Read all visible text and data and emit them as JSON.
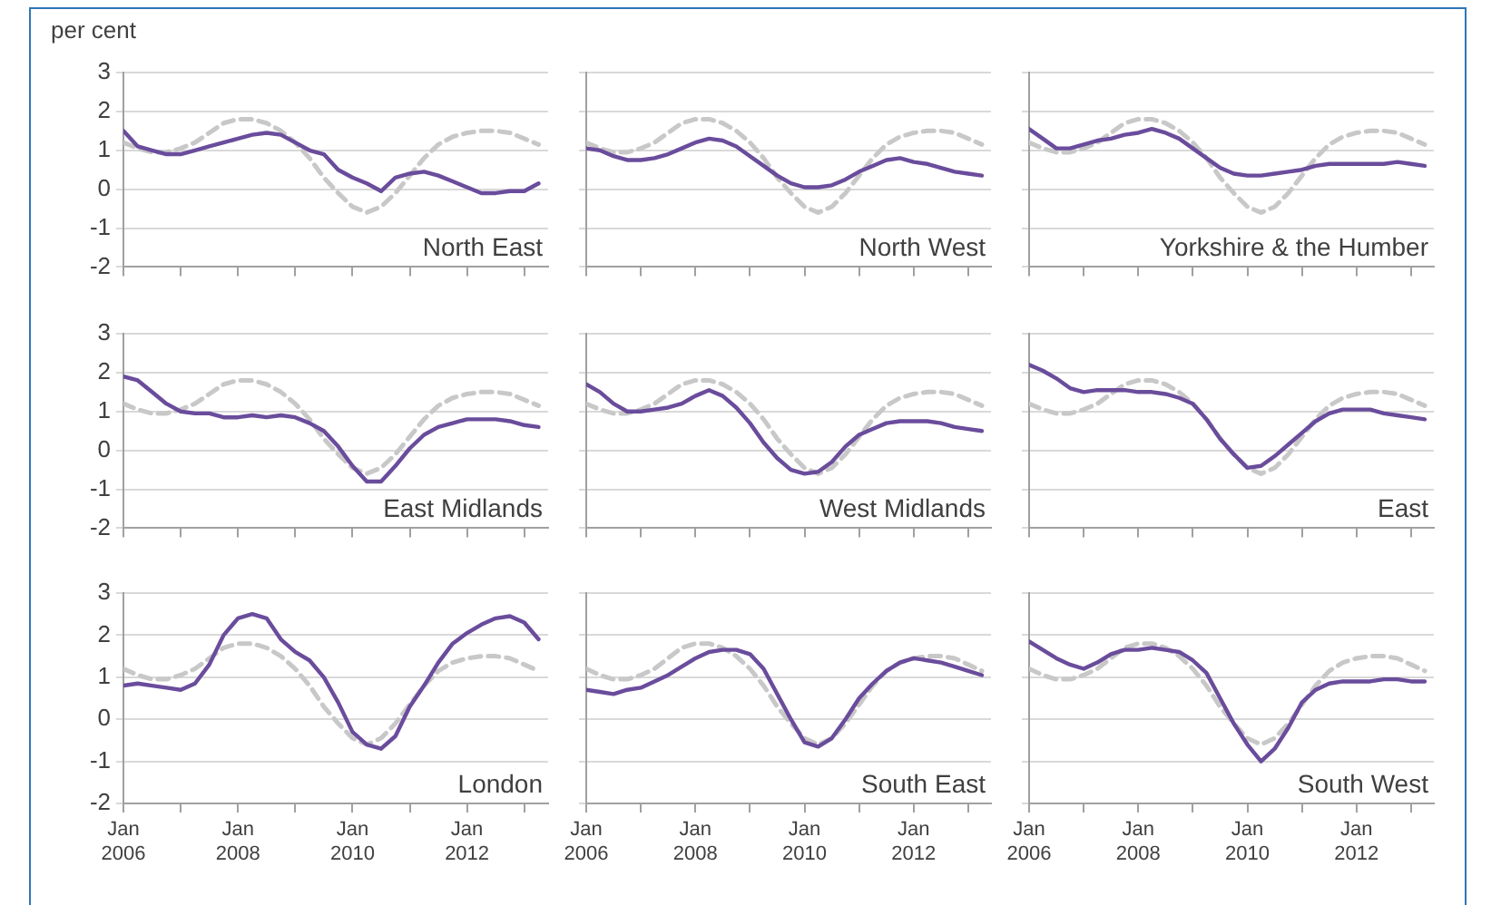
{
  "chart_data": [
    {
      "type": "line",
      "title": "North East",
      "ylabel": "per cent",
      "x": [
        "2006-01",
        "2006-04",
        "2006-07",
        "2006-10",
        "2007-01",
        "2007-04",
        "2007-07",
        "2007-10",
        "2008-01",
        "2008-04",
        "2008-07",
        "2008-10",
        "2009-01",
        "2009-04",
        "2009-07",
        "2009-10",
        "2010-01",
        "2010-04",
        "2010-07",
        "2010-10",
        "2011-01",
        "2011-04",
        "2011-07",
        "2011-10",
        "2012-01",
        "2012-04",
        "2012-07",
        "2012-10",
        "2013-01",
        "2013-04"
      ],
      "marker": "none",
      "grid": "y",
      "tick_labels": "y",
      "xlim": [
        "2006-01",
        "2013-06"
      ],
      "ylim": [
        -2,
        3
      ],
      "yticks": [
        -2,
        -1,
        0,
        1,
        2,
        3
      ],
      "xticks": [
        {
          "value": "2006-01",
          "label": null
        },
        {
          "value": "2007-01",
          "label": null
        },
        {
          "value": "2008-01",
          "label": null
        },
        {
          "value": "2009-01",
          "label": null
        },
        {
          "value": "2010-01",
          "label": null
        },
        {
          "value": "2011-01",
          "label": null
        },
        {
          "value": "2012-01",
          "label": null
        },
        {
          "value": "2013-01",
          "label": null
        }
      ],
      "series": [
        {
          "color": "#6a4c9c",
          "line_style": "solid",
          "values": [
            1.5,
            1.1,
            1.0,
            0.9,
            0.9,
            1.0,
            1.1,
            1.2,
            1.3,
            1.4,
            1.45,
            1.4,
            1.2,
            1.0,
            0.9,
            0.5,
            0.3,
            0.15,
            -0.05,
            0.3,
            0.4,
            0.45,
            0.35,
            0.2,
            0.05,
            -0.1,
            -0.1,
            -0.05,
            -0.05,
            0.15
          ]
        },
        {
          "color": "#c8c8c8",
          "line_style": "dashed",
          "values": [
            1.2,
            1.05,
            0.95,
            0.95,
            1.05,
            1.2,
            1.45,
            1.7,
            1.8,
            1.8,
            1.7,
            1.5,
            1.2,
            0.8,
            0.3,
            -0.1,
            -0.45,
            -0.6,
            -0.45,
            -0.1,
            0.35,
            0.8,
            1.15,
            1.35,
            1.45,
            1.5,
            1.5,
            1.45,
            1.3,
            1.15
          ]
        }
      ]
    },
    {
      "type": "line",
      "title": "North West",
      "x": [
        "2006-01",
        "2006-04",
        "2006-07",
        "2006-10",
        "2007-01",
        "2007-04",
        "2007-07",
        "2007-10",
        "2008-01",
        "2008-04",
        "2008-07",
        "2008-10",
        "2009-01",
        "2009-04",
        "2009-07",
        "2009-10",
        "2010-01",
        "2010-04",
        "2010-07",
        "2010-10",
        "2011-01",
        "2011-04",
        "2011-07",
        "2011-10",
        "2012-01",
        "2012-04",
        "2012-07",
        "2012-10",
        "2013-01",
        "2013-04"
      ],
      "marker": "none",
      "grid": "y",
      "tick_labels": false,
      "xlim": [
        "2006-01",
        "2013-06"
      ],
      "ylim": [
        -2,
        3
      ],
      "yticks": [
        -2,
        -1,
        0,
        1,
        2,
        3
      ],
      "xticks": [
        {
          "value": "2006-01",
          "label": null
        },
        {
          "value": "2007-01",
          "label": null
        },
        {
          "value": "2008-01",
          "label": null
        },
        {
          "value": "2009-01",
          "label": null
        },
        {
          "value": "2010-01",
          "label": null
        },
        {
          "value": "2011-01",
          "label": null
        },
        {
          "value": "2012-01",
          "label": null
        },
        {
          "value": "2013-01",
          "label": null
        }
      ],
      "series": [
        {
          "color": "#6a4c9c",
          "line_style": "solid",
          "values": [
            1.05,
            1.0,
            0.85,
            0.75,
            0.75,
            0.8,
            0.9,
            1.05,
            1.2,
            1.3,
            1.25,
            1.1,
            0.85,
            0.6,
            0.35,
            0.15,
            0.05,
            0.05,
            0.1,
            0.25,
            0.45,
            0.6,
            0.75,
            0.8,
            0.7,
            0.65,
            0.55,
            0.45,
            0.4,
            0.35
          ]
        },
        {
          "color": "#c8c8c8",
          "line_style": "dashed",
          "values": [
            1.2,
            1.05,
            0.95,
            0.95,
            1.05,
            1.2,
            1.45,
            1.7,
            1.8,
            1.8,
            1.7,
            1.5,
            1.2,
            0.8,
            0.3,
            -0.1,
            -0.45,
            -0.6,
            -0.45,
            -0.1,
            0.35,
            0.8,
            1.15,
            1.35,
            1.45,
            1.5,
            1.5,
            1.45,
            1.3,
            1.15
          ]
        }
      ]
    },
    {
      "type": "line",
      "title": "Yorkshire & the Humber",
      "x": [
        "2006-01",
        "2006-04",
        "2006-07",
        "2006-10",
        "2007-01",
        "2007-04",
        "2007-07",
        "2007-10",
        "2008-01",
        "2008-04",
        "2008-07",
        "2008-10",
        "2009-01",
        "2009-04",
        "2009-07",
        "2009-10",
        "2010-01",
        "2010-04",
        "2010-07",
        "2010-10",
        "2011-01",
        "2011-04",
        "2011-07",
        "2011-10",
        "2012-01",
        "2012-04",
        "2012-07",
        "2012-10",
        "2013-01",
        "2013-04"
      ],
      "marker": "none",
      "grid": "y",
      "tick_labels": false,
      "xlim": [
        "2006-01",
        "2013-06"
      ],
      "ylim": [
        -2,
        3
      ],
      "yticks": [
        -2,
        -1,
        0,
        1,
        2,
        3
      ],
      "xticks": [
        {
          "value": "2006-01",
          "label": null
        },
        {
          "value": "2007-01",
          "label": null
        },
        {
          "value": "2008-01",
          "label": null
        },
        {
          "value": "2009-01",
          "label": null
        },
        {
          "value": "2010-01",
          "label": null
        },
        {
          "value": "2011-01",
          "label": null
        },
        {
          "value": "2012-01",
          "label": null
        },
        {
          "value": "2013-01",
          "label": null
        }
      ],
      "series": [
        {
          "color": "#6a4c9c",
          "line_style": "solid",
          "values": [
            1.55,
            1.3,
            1.05,
            1.05,
            1.15,
            1.25,
            1.3,
            1.4,
            1.45,
            1.55,
            1.45,
            1.3,
            1.05,
            0.8,
            0.55,
            0.4,
            0.35,
            0.35,
            0.4,
            0.45,
            0.5,
            0.6,
            0.65,
            0.65,
            0.65,
            0.65,
            0.65,
            0.7,
            0.65,
            0.6
          ]
        },
        {
          "color": "#c8c8c8",
          "line_style": "dashed",
          "values": [
            1.2,
            1.05,
            0.95,
            0.95,
            1.05,
            1.2,
            1.45,
            1.7,
            1.8,
            1.8,
            1.7,
            1.5,
            1.2,
            0.8,
            0.3,
            -0.1,
            -0.45,
            -0.6,
            -0.45,
            -0.1,
            0.35,
            0.8,
            1.15,
            1.35,
            1.45,
            1.5,
            1.5,
            1.45,
            1.3,
            1.15
          ]
        }
      ]
    },
    {
      "type": "line",
      "title": "East Midlands",
      "x": [
        "2006-01",
        "2006-04",
        "2006-07",
        "2006-10",
        "2007-01",
        "2007-04",
        "2007-07",
        "2007-10",
        "2008-01",
        "2008-04",
        "2008-07",
        "2008-10",
        "2009-01",
        "2009-04",
        "2009-07",
        "2009-10",
        "2010-01",
        "2010-04",
        "2010-07",
        "2010-10",
        "2011-01",
        "2011-04",
        "2011-07",
        "2011-10",
        "2012-01",
        "2012-04",
        "2012-07",
        "2012-10",
        "2013-01",
        "2013-04"
      ],
      "marker": "none",
      "grid": "y",
      "tick_labels": "y",
      "xlim": [
        "2006-01",
        "2013-06"
      ],
      "ylim": [
        -2,
        3
      ],
      "yticks": [
        -2,
        -1,
        0,
        1,
        2,
        3
      ],
      "xticks": [
        {
          "value": "2006-01",
          "label": null
        },
        {
          "value": "2007-01",
          "label": null
        },
        {
          "value": "2008-01",
          "label": null
        },
        {
          "value": "2009-01",
          "label": null
        },
        {
          "value": "2010-01",
          "label": null
        },
        {
          "value": "2011-01",
          "label": null
        },
        {
          "value": "2012-01",
          "label": null
        },
        {
          "value": "2013-01",
          "label": null
        }
      ],
      "series": [
        {
          "color": "#6a4c9c",
          "line_style": "solid",
          "values": [
            1.9,
            1.8,
            1.5,
            1.2,
            1.0,
            0.95,
            0.95,
            0.85,
            0.85,
            0.9,
            0.85,
            0.9,
            0.85,
            0.7,
            0.5,
            0.1,
            -0.4,
            -0.8,
            -0.8,
            -0.4,
            0.05,
            0.4,
            0.6,
            0.7,
            0.8,
            0.8,
            0.8,
            0.75,
            0.65,
            0.6
          ]
        },
        {
          "color": "#c8c8c8",
          "line_style": "dashed",
          "values": [
            1.2,
            1.05,
            0.95,
            0.95,
            1.05,
            1.2,
            1.45,
            1.7,
            1.8,
            1.8,
            1.7,
            1.5,
            1.2,
            0.8,
            0.3,
            -0.1,
            -0.45,
            -0.6,
            -0.45,
            -0.1,
            0.35,
            0.8,
            1.15,
            1.35,
            1.45,
            1.5,
            1.5,
            1.45,
            1.3,
            1.15
          ]
        }
      ]
    },
    {
      "type": "line",
      "title": "West Midlands",
      "x": [
        "2006-01",
        "2006-04",
        "2006-07",
        "2006-10",
        "2007-01",
        "2007-04",
        "2007-07",
        "2007-10",
        "2008-01",
        "2008-04",
        "2008-07",
        "2008-10",
        "2009-01",
        "2009-04",
        "2009-07",
        "2009-10",
        "2010-01",
        "2010-04",
        "2010-07",
        "2010-10",
        "2011-01",
        "2011-04",
        "2011-07",
        "2011-10",
        "2012-01",
        "2012-04",
        "2012-07",
        "2012-10",
        "2013-01",
        "2013-04"
      ],
      "marker": "none",
      "grid": "y",
      "tick_labels": false,
      "xlim": [
        "2006-01",
        "2013-06"
      ],
      "ylim": [
        -2,
        3
      ],
      "yticks": [
        -2,
        -1,
        0,
        1,
        2,
        3
      ],
      "xticks": [
        {
          "value": "2006-01",
          "label": null
        },
        {
          "value": "2007-01",
          "label": null
        },
        {
          "value": "2008-01",
          "label": null
        },
        {
          "value": "2009-01",
          "label": null
        },
        {
          "value": "2010-01",
          "label": null
        },
        {
          "value": "2011-01",
          "label": null
        },
        {
          "value": "2012-01",
          "label": null
        },
        {
          "value": "2013-01",
          "label": null
        }
      ],
      "series": [
        {
          "color": "#6a4c9c",
          "line_style": "solid",
          "values": [
            1.7,
            1.5,
            1.2,
            1.0,
            1.0,
            1.05,
            1.1,
            1.2,
            1.4,
            1.55,
            1.4,
            1.1,
            0.7,
            0.2,
            -0.2,
            -0.5,
            -0.6,
            -0.55,
            -0.3,
            0.1,
            0.4,
            0.55,
            0.7,
            0.75,
            0.75,
            0.75,
            0.7,
            0.6,
            0.55,
            0.5
          ]
        },
        {
          "color": "#c8c8c8",
          "line_style": "dashed",
          "values": [
            1.2,
            1.05,
            0.95,
            0.95,
            1.05,
            1.2,
            1.45,
            1.7,
            1.8,
            1.8,
            1.7,
            1.5,
            1.2,
            0.8,
            0.3,
            -0.1,
            -0.45,
            -0.6,
            -0.45,
            -0.1,
            0.35,
            0.8,
            1.15,
            1.35,
            1.45,
            1.5,
            1.5,
            1.45,
            1.3,
            1.15
          ]
        }
      ]
    },
    {
      "type": "line",
      "title": "East",
      "x": [
        "2006-01",
        "2006-04",
        "2006-07",
        "2006-10",
        "2007-01",
        "2007-04",
        "2007-07",
        "2007-10",
        "2008-01",
        "2008-04",
        "2008-07",
        "2008-10",
        "2009-01",
        "2009-04",
        "2009-07",
        "2009-10",
        "2010-01",
        "2010-04",
        "2010-07",
        "2010-10",
        "2011-01",
        "2011-04",
        "2011-07",
        "2011-10",
        "2012-01",
        "2012-04",
        "2012-07",
        "2012-10",
        "2013-01",
        "2013-04"
      ],
      "marker": "none",
      "grid": "y",
      "tick_labels": false,
      "xlim": [
        "2006-01",
        "2013-06"
      ],
      "ylim": [
        -2,
        3
      ],
      "yticks": [
        -2,
        -1,
        0,
        1,
        2,
        3
      ],
      "xticks": [
        {
          "value": "2006-01",
          "label": null
        },
        {
          "value": "2007-01",
          "label": null
        },
        {
          "value": "2008-01",
          "label": null
        },
        {
          "value": "2009-01",
          "label": null
        },
        {
          "value": "2010-01",
          "label": null
        },
        {
          "value": "2011-01",
          "label": null
        },
        {
          "value": "2012-01",
          "label": null
        },
        {
          "value": "2013-01",
          "label": null
        }
      ],
      "series": [
        {
          "color": "#6a4c9c",
          "line_style": "solid",
          "values": [
            2.2,
            2.05,
            1.85,
            1.6,
            1.5,
            1.55,
            1.55,
            1.55,
            1.5,
            1.5,
            1.45,
            1.35,
            1.2,
            0.8,
            0.3,
            -0.1,
            -0.45,
            -0.4,
            -0.15,
            0.15,
            0.45,
            0.75,
            0.95,
            1.05,
            1.05,
            1.05,
            0.95,
            0.9,
            0.85,
            0.8
          ]
        },
        {
          "color": "#c8c8c8",
          "line_style": "dashed",
          "values": [
            1.2,
            1.05,
            0.95,
            0.95,
            1.05,
            1.2,
            1.45,
            1.7,
            1.8,
            1.8,
            1.7,
            1.5,
            1.2,
            0.8,
            0.3,
            -0.1,
            -0.45,
            -0.6,
            -0.45,
            -0.1,
            0.35,
            0.8,
            1.15,
            1.35,
            1.45,
            1.5,
            1.5,
            1.45,
            1.3,
            1.15
          ]
        }
      ]
    },
    {
      "type": "line",
      "title": "London",
      "x": [
        "2006-01",
        "2006-04",
        "2006-07",
        "2006-10",
        "2007-01",
        "2007-04",
        "2007-07",
        "2007-10",
        "2008-01",
        "2008-04",
        "2008-07",
        "2008-10",
        "2009-01",
        "2009-04",
        "2009-07",
        "2009-10",
        "2010-01",
        "2010-04",
        "2010-07",
        "2010-10",
        "2011-01",
        "2011-04",
        "2011-07",
        "2011-10",
        "2012-01",
        "2012-04",
        "2012-07",
        "2012-10",
        "2013-01",
        "2013-04"
      ],
      "marker": "none",
      "grid": "y",
      "xlim": [
        "2006-01",
        "2013-06"
      ],
      "ylim": [
        -2,
        3
      ],
      "yticks": [
        -2,
        -1,
        0,
        1,
        2,
        3
      ],
      "xticks": [
        {
          "value": "2006-01",
          "label": "Jan 2006"
        },
        {
          "value": "2007-01",
          "label": null
        },
        {
          "value": "2008-01",
          "label": "Jan 2008"
        },
        {
          "value": "2009-01",
          "label": null
        },
        {
          "value": "2010-01",
          "label": "Jan 2010"
        },
        {
          "value": "2011-01",
          "label": null
        },
        {
          "value": "2012-01",
          "label": "Jan 2012"
        },
        {
          "value": "2013-01",
          "label": null
        }
      ],
      "series": [
        {
          "color": "#6a4c9c",
          "line_style": "solid",
          "values": [
            0.8,
            0.85,
            0.8,
            0.75,
            0.7,
            0.85,
            1.3,
            2.0,
            2.4,
            2.5,
            2.4,
            1.9,
            1.6,
            1.4,
            1.0,
            0.4,
            -0.3,
            -0.6,
            -0.7,
            -0.4,
            0.3,
            0.8,
            1.35,
            1.8,
            2.05,
            2.25,
            2.4,
            2.45,
            2.3,
            1.9
          ]
        },
        {
          "color": "#c8c8c8",
          "line_style": "dashed",
          "values": [
            1.2,
            1.05,
            0.95,
            0.95,
            1.05,
            1.2,
            1.45,
            1.7,
            1.8,
            1.8,
            1.7,
            1.5,
            1.2,
            0.8,
            0.3,
            -0.1,
            -0.45,
            -0.6,
            -0.45,
            -0.1,
            0.35,
            0.8,
            1.15,
            1.35,
            1.45,
            1.5,
            1.5,
            1.45,
            1.3,
            1.15
          ]
        }
      ]
    },
    {
      "type": "line",
      "title": "South East",
      "x": [
        "2006-01",
        "2006-04",
        "2006-07",
        "2006-10",
        "2007-01",
        "2007-04",
        "2007-07",
        "2007-10",
        "2008-01",
        "2008-04",
        "2008-07",
        "2008-10",
        "2009-01",
        "2009-04",
        "2009-07",
        "2009-10",
        "2010-01",
        "2010-04",
        "2010-07",
        "2010-10",
        "2011-01",
        "2011-04",
        "2011-07",
        "2011-10",
        "2012-01",
        "2012-04",
        "2012-07",
        "2012-10",
        "2013-01",
        "2013-04"
      ],
      "marker": "none",
      "grid": "y",
      "tick_labels": "x",
      "xlim": [
        "2006-01",
        "2013-06"
      ],
      "ylim": [
        -2,
        3
      ],
      "yticks": [
        -2,
        -1,
        0,
        1,
        2,
        3
      ],
      "xticks": [
        {
          "value": "2006-01",
          "label": "Jan 2006"
        },
        {
          "value": "2007-01",
          "label": null
        },
        {
          "value": "2008-01",
          "label": "Jan 2008"
        },
        {
          "value": "2009-01",
          "label": null
        },
        {
          "value": "2010-01",
          "label": "Jan 2010"
        },
        {
          "value": "2011-01",
          "label": null
        },
        {
          "value": "2012-01",
          "label": "Jan 2012"
        },
        {
          "value": "2013-01",
          "label": null
        }
      ],
      "series": [
        {
          "color": "#6a4c9c",
          "line_style": "solid",
          "values": [
            0.7,
            0.65,
            0.6,
            0.7,
            0.75,
            0.9,
            1.05,
            1.25,
            1.45,
            1.6,
            1.65,
            1.65,
            1.55,
            1.2,
            0.6,
            0.0,
            -0.55,
            -0.65,
            -0.45,
            0.0,
            0.5,
            0.85,
            1.15,
            1.35,
            1.45,
            1.4,
            1.35,
            1.25,
            1.15,
            1.05
          ]
        },
        {
          "color": "#c8c8c8",
          "line_style": "dashed",
          "values": [
            1.2,
            1.05,
            0.95,
            0.95,
            1.05,
            1.2,
            1.45,
            1.7,
            1.8,
            1.8,
            1.7,
            1.5,
            1.2,
            0.8,
            0.3,
            -0.1,
            -0.45,
            -0.6,
            -0.45,
            -0.1,
            0.35,
            0.8,
            1.15,
            1.35,
            1.45,
            1.5,
            1.5,
            1.45,
            1.3,
            1.15
          ]
        }
      ]
    },
    {
      "type": "line",
      "title": "South West",
      "x": [
        "2006-01",
        "2006-04",
        "2006-07",
        "2006-10",
        "2007-01",
        "2007-04",
        "2007-07",
        "2007-10",
        "2008-01",
        "2008-04",
        "2008-07",
        "2008-10",
        "2009-01",
        "2009-04",
        "2009-07",
        "2009-10",
        "2010-01",
        "2010-04",
        "2010-07",
        "2010-10",
        "2011-01",
        "2011-04",
        "2011-07",
        "2011-10",
        "2012-01",
        "2012-04",
        "2012-07",
        "2012-10",
        "2013-01",
        "2013-04"
      ],
      "marker": "none",
      "grid": "y",
      "tick_labels": "x",
      "xlim": [
        "2006-01",
        "2013-06"
      ],
      "ylim": [
        -2,
        3
      ],
      "yticks": [
        -2,
        -1,
        0,
        1,
        2,
        3
      ],
      "xticks": [
        {
          "value": "2006-01",
          "label": "Jan 2006"
        },
        {
          "value": "2007-01",
          "label": null
        },
        {
          "value": "2008-01",
          "label": "Jan 2008"
        },
        {
          "value": "2009-01",
          "label": null
        },
        {
          "value": "2010-01",
          "label": "Jan 2010"
        },
        {
          "value": "2011-01",
          "label": null
        },
        {
          "value": "2012-01",
          "label": "Jan 2012"
        },
        {
          "value": "2013-01",
          "label": null
        }
      ],
      "series": [
        {
          "color": "#6a4c9c",
          "line_style": "solid",
          "values": [
            1.85,
            1.65,
            1.45,
            1.3,
            1.2,
            1.35,
            1.55,
            1.65,
            1.65,
            1.7,
            1.65,
            1.6,
            1.4,
            1.1,
            0.5,
            -0.1,
            -0.6,
            -1.0,
            -0.7,
            -0.2,
            0.4,
            0.7,
            0.85,
            0.9,
            0.9,
            0.9,
            0.95,
            0.95,
            0.9,
            0.9
          ]
        },
        {
          "color": "#c8c8c8",
          "line_style": "dashed",
          "values": [
            1.2,
            1.05,
            0.95,
            0.95,
            1.05,
            1.2,
            1.45,
            1.7,
            1.8,
            1.8,
            1.7,
            1.5,
            1.2,
            0.8,
            0.3,
            -0.1,
            -0.45,
            -0.6,
            -0.45,
            -0.1,
            0.35,
            0.8,
            1.15,
            1.35,
            1.45,
            1.5,
            1.5,
            1.45,
            1.3,
            1.15
          ]
        }
      ]
    }
  ]
}
